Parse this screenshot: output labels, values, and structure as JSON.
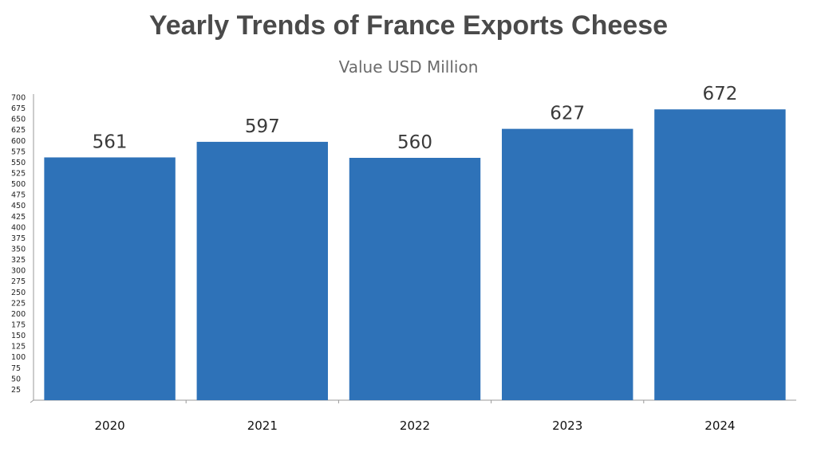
{
  "chart_data": {
    "type": "bar",
    "title": "Yearly Trends of France Exports Cheese",
    "subtitle": "Value USD Million",
    "xlabel": "",
    "ylabel": "",
    "categories": [
      "2020",
      "2021",
      "2022",
      "2023",
      "2024"
    ],
    "values": [
      561,
      597,
      560,
      627,
      672
    ],
    "data_labels": [
      "561",
      "597",
      "560",
      "627",
      "672"
    ],
    "ylim": [
      0,
      700
    ],
    "y_ticks": [
      25,
      50,
      75,
      100,
      125,
      150,
      175,
      200,
      225,
      250,
      275,
      300,
      325,
      350,
      375,
      400,
      425,
      450,
      475,
      500,
      525,
      550,
      575,
      600,
      625,
      650,
      675,
      700
    ],
    "grid": false,
    "legend": "none",
    "bar_color": "#2e72b8"
  }
}
